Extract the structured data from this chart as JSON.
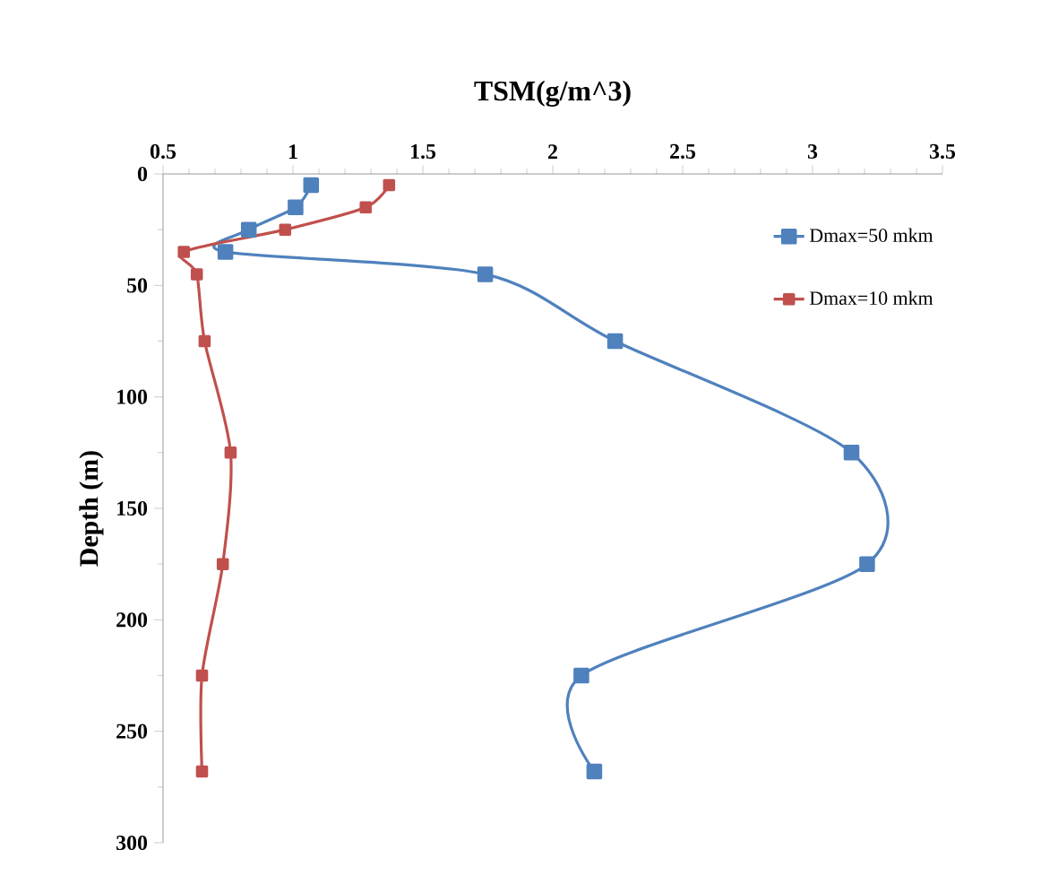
{
  "chart_data": {
    "type": "line",
    "title": "TSM(g/m^3)",
    "ylabel": "Depth (m)",
    "xlim": [
      0.5,
      3.5
    ],
    "xticks": [
      0.5,
      1,
      1.5,
      2,
      2.5,
      3,
      3.5
    ],
    "ylim": [
      300,
      0
    ],
    "yticks": [
      0,
      50,
      100,
      150,
      200,
      250,
      300
    ],
    "series": [
      {
        "name": "Dmax=50 mkm",
        "color": "#4f81bd",
        "x": [
          1.07,
          1.01,
          0.83,
          0.74,
          1.74,
          2.24,
          3.15,
          3.21,
          2.11,
          2.16
        ],
        "values": [
          5,
          15,
          25,
          35,
          45,
          75,
          125,
          175,
          225,
          268
        ]
      },
      {
        "name": "Dmax=10 mkm",
        "color": "#c0504d",
        "x": [
          1.37,
          1.28,
          0.97,
          0.58,
          0.63,
          0.66,
          0.76,
          0.73,
          0.65,
          0.65
        ],
        "values": [
          5,
          15,
          25,
          35,
          45,
          75,
          125,
          175,
          225,
          268
        ]
      }
    ],
    "marker": "square",
    "line_style": "solid",
    "legend": "top right",
    "grid": false
  }
}
